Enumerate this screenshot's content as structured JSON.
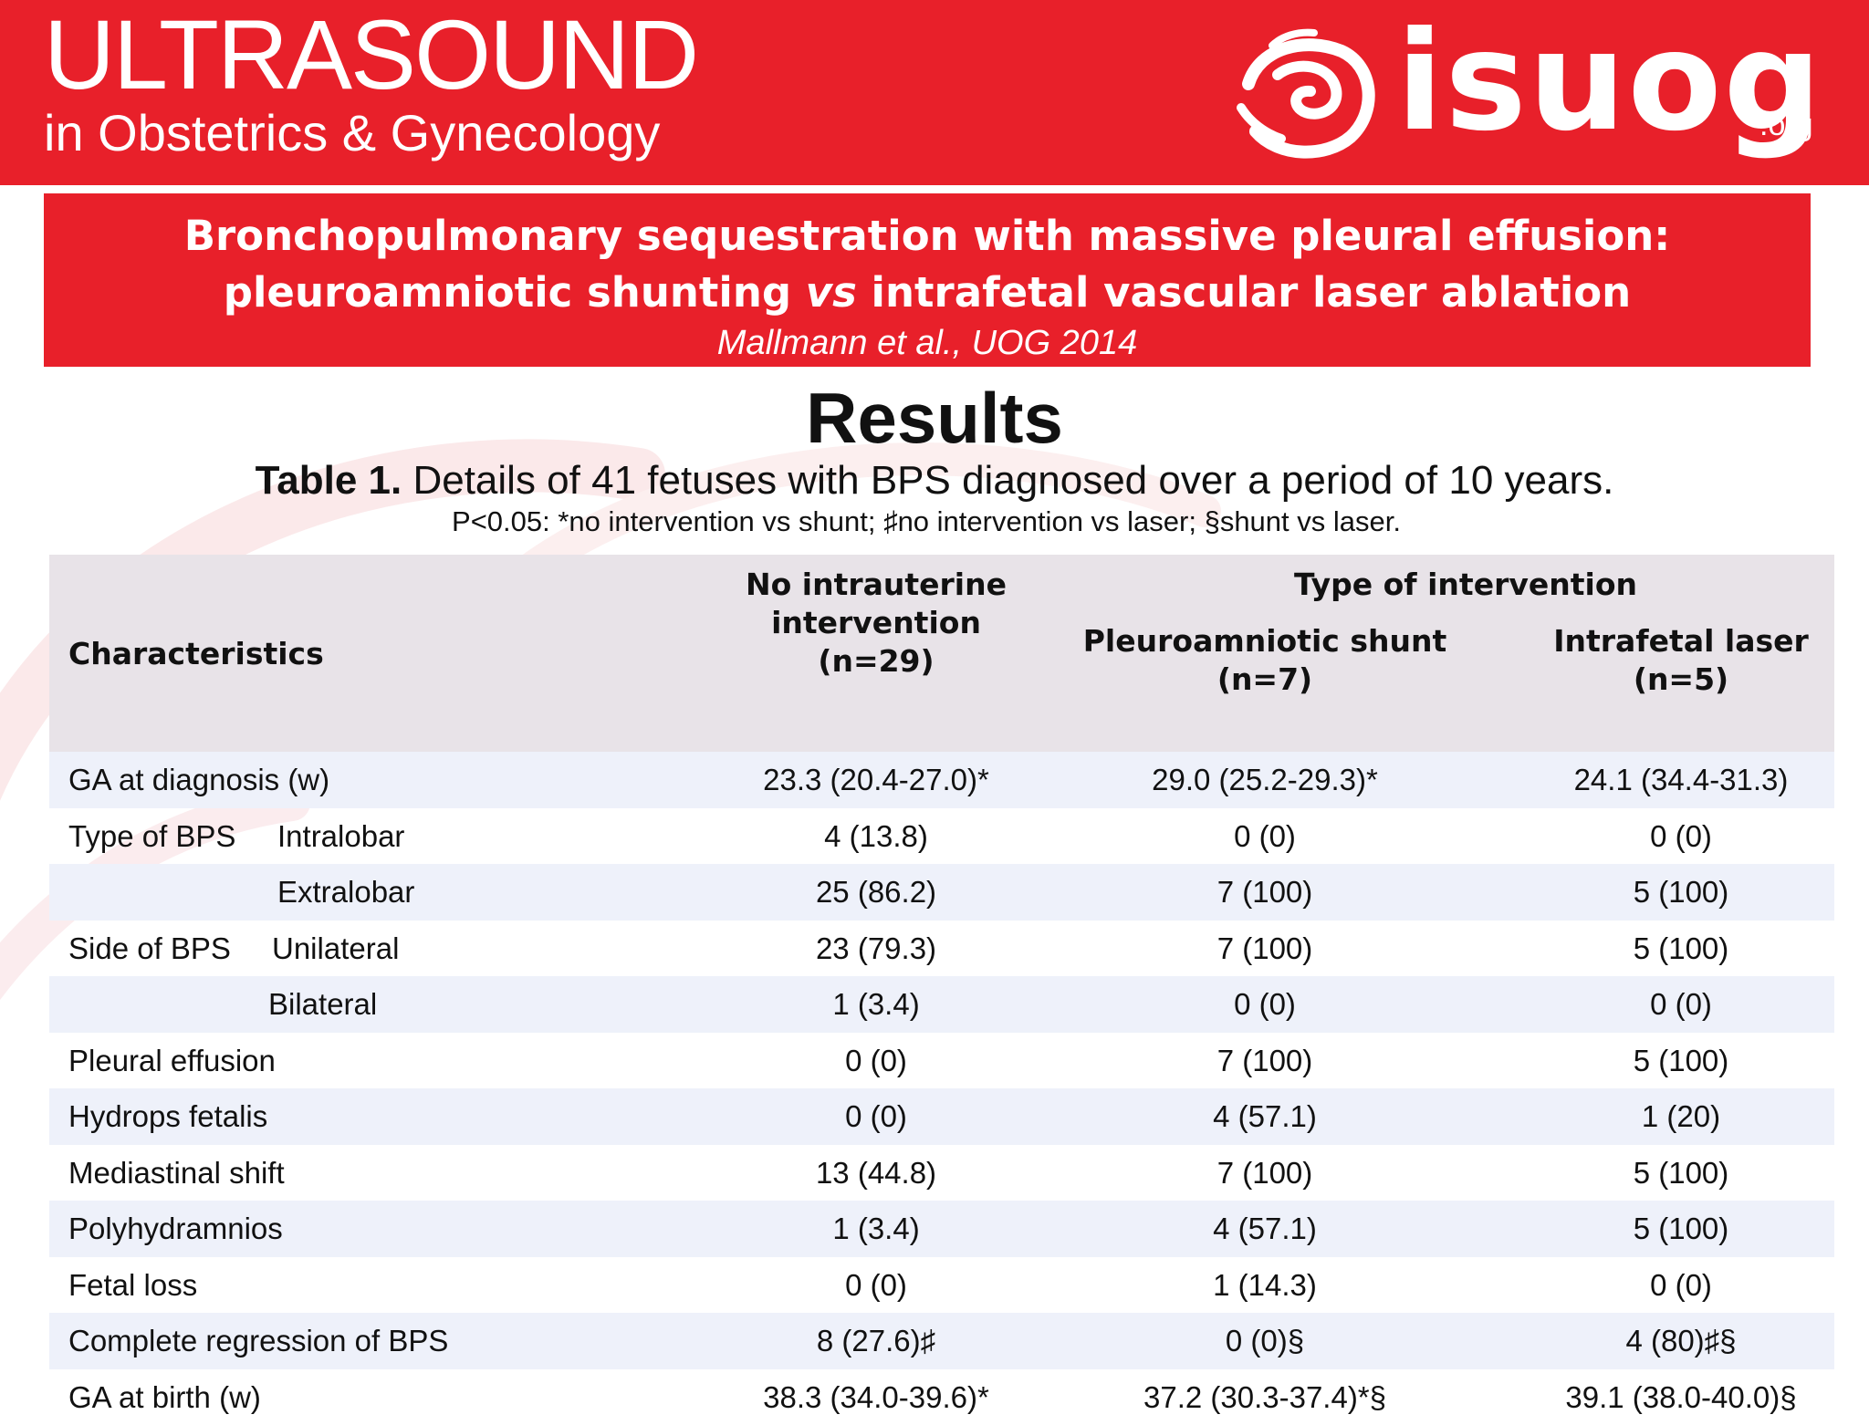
{
  "header": {
    "journal_title_line1": "ULTRASOUND",
    "journal_title_line2": "in Obstetrics & Gynecology",
    "logo_icon": "isuog-fetus-swirl-icon",
    "logo_word": "isuog",
    "logo_suffix": ".org"
  },
  "article": {
    "title_line1": "Bronchopulmonary sequestration with massive pleural effusion:",
    "title_line2_part1": "pleuroamniotic shunting ",
    "title_line2_vs": "vs",
    "title_line2_part2": " intrafetal vascular laser ablation",
    "citation": "Mallmann et al., UOG 2014"
  },
  "section_heading": "Results",
  "table": {
    "caption_label": "Table 1.",
    "caption_text": " Details of 41 fetuses with BPS diagnosed over a period of 10 years.",
    "note": "P<0.05: *no intervention vs shunt; ♯no intervention vs laser; §shunt vs laser.",
    "headers": {
      "characteristics": "Characteristics",
      "no_intervention_l1": "No intrauterine",
      "no_intervention_l2": "intervention",
      "no_intervention_l3": "(n=29)",
      "type_of_intervention": "Type of intervention",
      "shunt_l1": "Pleuroamniotic shunt",
      "shunt_l2": "(n=7)",
      "laser_l1": "Intrafetal laser",
      "laser_l2": "(n=5)"
    },
    "rows": [
      {
        "label": "GA at diagnosis (w)",
        "sub": "",
        "none": "23.3 (20.4-27.0)*",
        "shunt": "29.0 (25.2-29.3)*",
        "laser": "24.1 (34.4-31.3)"
      },
      {
        "label": "Type of BPS",
        "sub": "Intralobar",
        "none": "4 (13.8)",
        "shunt": "0 (0)",
        "laser": "0 (0)"
      },
      {
        "label": "",
        "sub": "Extralobar",
        "none": "25 (86.2)",
        "shunt": "7 (100)",
        "laser": "5 (100)"
      },
      {
        "label": "Side of BPS",
        "sub": "Unilateral",
        "none": "23 (79.3)",
        "shunt": "7 (100)",
        "laser": "5 (100)"
      },
      {
        "label": "",
        "sub": "Bilateral",
        "none": "1 (3.4)",
        "shunt": "0 (0)",
        "laser": "0 (0)"
      },
      {
        "label": "Pleural effusion",
        "sub": "",
        "none": "0 (0)",
        "shunt": "7 (100)",
        "laser": "5 (100)"
      },
      {
        "label": "Hydrops fetalis",
        "sub": "",
        "none": "0 (0)",
        "shunt": "4 (57.1)",
        "laser": "1 (20)"
      },
      {
        "label": "Mediastinal shift",
        "sub": "",
        "none": "13 (44.8)",
        "shunt": "7 (100)",
        "laser": "5 (100)"
      },
      {
        "label": "Polyhydramnios",
        "sub": "",
        "none": "1 (3.4)",
        "shunt": "4 (57.1)",
        "laser": "5 (100)"
      },
      {
        "label": "Fetal loss",
        "sub": "",
        "none": "0 (0)",
        "shunt": "1 (14.3)",
        "laser": "0 (0)"
      },
      {
        "label": "Complete regression of BPS",
        "sub": "",
        "none": "8 (27.6)♯",
        "shunt": "0 (0)§",
        "laser": "4 (80)♯§"
      },
      {
        "label": "GA at birth (w)",
        "sub": "",
        "none": "38.3 (34.0-39.6)*",
        "shunt": "37.2 (30.3-37.4)*§",
        "laser": "39.1 (38.0-40.0)§"
      }
    ]
  },
  "colors": {
    "brand_red": "#e8202a",
    "header_row_bg": "#e8e3e8",
    "stripe_bg": "#eef1fa",
    "watermark": "#fbe9ea"
  }
}
